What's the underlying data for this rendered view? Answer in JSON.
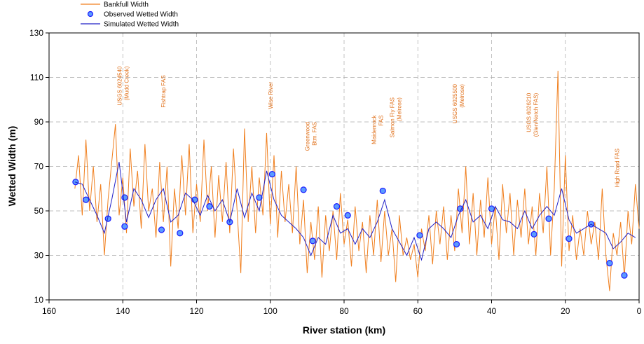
{
  "chart_data": {
    "type": "line",
    "x_label": "River station (km)",
    "y_label": "Wetted Width (m)",
    "xlim": [
      160,
      0
    ],
    "xticks": [
      160,
      140,
      120,
      100,
      80,
      60,
      40,
      20,
      0
    ],
    "ylim": [
      10,
      130
    ],
    "yticks": [
      10,
      30,
      50,
      70,
      90,
      110,
      130
    ],
    "grid": true,
    "series": [
      {
        "name": "Bankfull Width",
        "color": "#f07f1e",
        "mode": "line",
        "x": [
          153,
          152,
          151,
          150,
          149,
          148,
          147,
          146,
          145,
          144,
          143,
          142,
          141,
          140,
          139,
          138,
          137,
          136,
          135,
          134,
          133,
          132,
          131,
          130,
          129,
          128,
          127,
          126,
          125,
          124,
          123,
          122,
          121,
          120,
          119,
          118,
          117,
          116,
          115,
          114,
          113,
          112,
          111,
          110,
          109,
          108,
          107,
          106,
          105,
          104,
          103,
          102,
          101,
          100,
          99,
          98,
          97,
          96,
          95,
          94,
          93,
          92,
          91,
          90,
          89,
          88,
          87,
          86,
          85,
          84,
          83,
          82,
          81,
          80,
          79,
          78,
          77,
          76,
          75,
          74,
          73,
          72,
          71,
          70,
          69,
          68,
          67,
          66,
          65,
          64,
          63,
          62,
          61,
          60,
          59,
          58,
          57,
          56,
          55,
          54,
          53,
          52,
          51,
          50,
          49,
          48,
          47,
          46,
          45,
          44,
          43,
          42,
          41,
          40,
          39,
          38,
          37,
          36,
          35,
          34,
          33,
          32,
          31,
          30,
          29,
          28,
          27,
          26,
          25,
          24,
          23,
          22,
          21,
          20,
          19,
          18,
          17,
          16,
          15,
          14,
          13,
          12,
          11,
          10,
          9,
          8,
          7,
          6,
          5,
          4,
          3,
          2,
          1,
          0
        ],
        "values": [
          60,
          75,
          48,
          82,
          50,
          70,
          45,
          62,
          30,
          55,
          72,
          89,
          48,
          65,
          40,
          78,
          52,
          68,
          42,
          80,
          50,
          60,
          38,
          72,
          45,
          70,
          25,
          60,
          42,
          75,
          48,
          80,
          40,
          62,
          45,
          82,
          50,
          70,
          38,
          66,
          45,
          72,
          40,
          78,
          50,
          22,
          87,
          45,
          70,
          40,
          65,
          48,
          85,
          44,
          75,
          38,
          68,
          45,
          62,
          40,
          70,
          35,
          55,
          22,
          45,
          28,
          52,
          20,
          48,
          32,
          50,
          28,
          58,
          35,
          46,
          25,
          52,
          32,
          45,
          22,
          48,
          30,
          55,
          27,
          50,
          30,
          42,
          18,
          48,
          30,
          38,
          28,
          35,
          20,
          42,
          32,
          48,
          26,
          50,
          35,
          52,
          28,
          48,
          32,
          60,
          40,
          70,
          35,
          58,
          30,
          55,
          38,
          65,
          35,
          52,
          28,
          62,
          40,
          58,
          30,
          55,
          38,
          60,
          35,
          52,
          30,
          58,
          40,
          70,
          30,
          60,
          113,
          25,
          75,
          32,
          48,
          28,
          42,
          30,
          50,
          35,
          45,
          28,
          60,
          30,
          14,
          40,
          30,
          45,
          20,
          50,
          35,
          62,
          42
        ]
      },
      {
        "name": "Observed Wetted Width",
        "color": "#1a1aff",
        "mode": "marker",
        "x": [
          152.8,
          150,
          144,
          139.5,
          139.5,
          129.5,
          124.5,
          120.5,
          116.5,
          111,
          103,
          99.5,
          91,
          88.5,
          82,
          79,
          69.5,
          59.5,
          49.5,
          48.5,
          40,
          28.5,
          24.5,
          19,
          13,
          8,
          4
        ],
        "values": [
          63,
          55,
          46.5,
          56,
          43,
          41.5,
          40,
          55,
          52,
          45,
          56,
          66.5,
          59.5,
          36.5,
          52,
          48,
          59,
          39,
          35,
          51,
          51,
          39.5,
          46.5,
          37.5,
          44,
          26.5,
          21
        ]
      },
      {
        "name": "Simulated Wetted Width",
        "color": "#2020c8",
        "mode": "line",
        "x": [
          153,
          151,
          149,
          147,
          145,
          143,
          141,
          139,
          137,
          135,
          133,
          131,
          129,
          127,
          125,
          123,
          121,
          119,
          117,
          115,
          113,
          111,
          109,
          107,
          105,
          103,
          101,
          99,
          97,
          95,
          93,
          91,
          89,
          87,
          85,
          83,
          81,
          79,
          77,
          75,
          73,
          71,
          69,
          67,
          65,
          63,
          61,
          59,
          57,
          55,
          53,
          51,
          49,
          47,
          45,
          43,
          41,
          39,
          37,
          35,
          33,
          31,
          29,
          27,
          25,
          23,
          21,
          19,
          17,
          15,
          13,
          11,
          9,
          7,
          5,
          3,
          1
        ],
        "values": [
          63,
          62,
          55,
          48,
          40,
          55,
          72,
          45,
          60,
          55,
          47,
          55,
          60,
          45,
          48,
          58,
          55,
          48,
          57,
          50,
          55,
          45,
          60,
          47,
          58,
          50,
          68,
          55,
          48,
          45,
          42,
          38,
          30,
          38,
          35,
          48,
          40,
          42,
          35,
          42,
          38,
          45,
          55,
          42,
          36,
          30,
          38,
          28,
          42,
          45,
          42,
          38,
          48,
          55,
          45,
          48,
          42,
          52,
          46,
          45,
          42,
          50,
          42,
          48,
          52,
          48,
          60,
          46,
          40,
          42,
          44,
          42,
          40,
          33,
          36,
          40,
          38
        ]
      }
    ],
    "annotations": [
      {
        "lines": [
          "USGS 6024540",
          "(Mudd Creek)"
        ],
        "x": 140,
        "y": 115
      },
      {
        "lines": [
          "Fishtrap FAS"
        ],
        "x": 129,
        "y": 111
      },
      {
        "lines": [
          "Wise River"
        ],
        "x": 100,
        "y": 108
      },
      {
        "lines": [
          "Greenwood",
          "Btm. FAS"
        ],
        "x": 89,
        "y": 90
      },
      {
        "lines": [
          "Maidenrock",
          "FAS"
        ],
        "x": 71,
        "y": 93
      },
      {
        "lines": [
          "Salmon Fly FAS",
          "(Melrose)"
        ],
        "x": 66,
        "y": 101
      },
      {
        "lines": [
          "USGS 6025500",
          "(Melrose)"
        ],
        "x": 49,
        "y": 107
      },
      {
        "lines": [
          "USGS 6026210",
          "(Glen/Notch FAS)"
        ],
        "x": 29,
        "y": 103
      },
      {
        "lines": [
          "High Road FAS"
        ],
        "x": 6,
        "y": 78
      }
    ]
  }
}
